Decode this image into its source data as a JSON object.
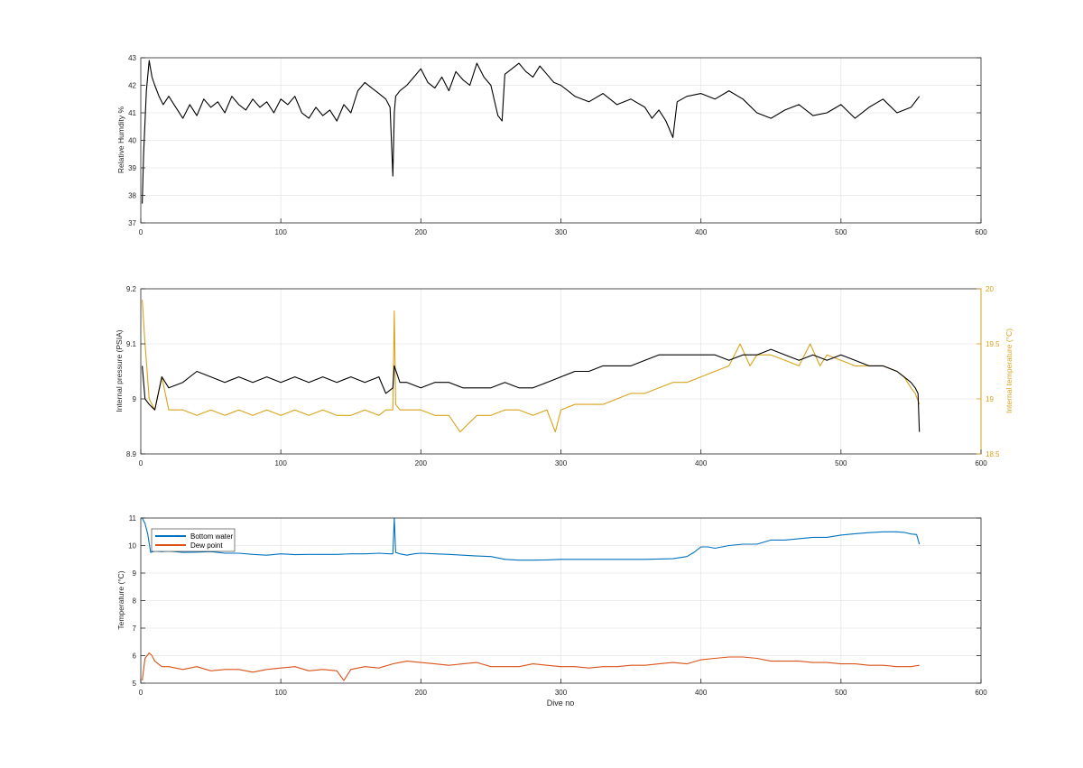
{
  "figure": {
    "xlabel_bottom": "Dive no",
    "colors": {
      "black": "#000000",
      "orange": "#D9A21B",
      "blue": "#0072BD",
      "red": "#D95319",
      "grid": "#e6e6e6",
      "axis": "#262626"
    }
  },
  "chart_data": [
    {
      "type": "line",
      "title": "",
      "xlabel": "",
      "ylabel": "Relative Humdity %",
      "xlim": [
        0,
        600
      ],
      "ylim": [
        37,
        43
      ],
      "xticks": [
        0,
        100,
        200,
        300,
        400,
        500,
        600
      ],
      "yticks": [
        37,
        38,
        39,
        40,
        41,
        42,
        43
      ],
      "xtick_labels": [
        "0",
        "100",
        "200",
        "300",
        "400",
        "500",
        "600"
      ],
      "ytick_labels": [
        "37",
        "38",
        "39",
        "40",
        "41",
        "42",
        "43"
      ],
      "grid": true,
      "series": [
        {
          "color": "#000000",
          "x": [
            1,
            2,
            4,
            6,
            8,
            10,
            13,
            16,
            20,
            25,
            30,
            35,
            40,
            45,
            50,
            55,
            60,
            65,
            70,
            75,
            80,
            85,
            90,
            95,
            100,
            105,
            110,
            115,
            120,
            125,
            130,
            135,
            140,
            145,
            150,
            155,
            160,
            165,
            170,
            175,
            178,
            180,
            181,
            182,
            185,
            190,
            195,
            200,
            205,
            210,
            215,
            220,
            225,
            230,
            235,
            240,
            245,
            250,
            255,
            258,
            260,
            265,
            270,
            275,
            280,
            285,
            290,
            295,
            300,
            305,
            310,
            320,
            330,
            340,
            350,
            360,
            365,
            370,
            375,
            380,
            383,
            390,
            400,
            410,
            420,
            430,
            440,
            450,
            460,
            470,
            480,
            490,
            500,
            510,
            520,
            530,
            540,
            550,
            556
          ],
          "y": [
            37.7,
            39.5,
            41.8,
            42.9,
            42.3,
            42.0,
            41.6,
            41.3,
            41.6,
            41.2,
            40.8,
            41.3,
            40.9,
            41.5,
            41.2,
            41.4,
            41.0,
            41.6,
            41.3,
            41.1,
            41.5,
            41.2,
            41.4,
            41.0,
            41.5,
            41.3,
            41.6,
            41.0,
            40.8,
            41.2,
            40.9,
            41.1,
            40.7,
            41.3,
            41.0,
            41.8,
            42.1,
            41.9,
            41.7,
            41.5,
            41.2,
            38.7,
            41.0,
            41.6,
            41.8,
            42.0,
            42.3,
            42.6,
            42.1,
            41.9,
            42.3,
            41.8,
            42.5,
            42.2,
            42.0,
            42.8,
            42.3,
            42.0,
            40.9,
            40.7,
            42.4,
            42.6,
            42.8,
            42.5,
            42.3,
            42.7,
            42.4,
            42.1,
            42.0,
            41.8,
            41.6,
            41.4,
            41.7,
            41.3,
            41.5,
            41.2,
            40.8,
            41.1,
            40.7,
            40.1,
            41.4,
            41.6,
            41.7,
            41.5,
            41.8,
            41.5,
            41.0,
            40.8,
            41.1,
            41.3,
            40.9,
            41.0,
            41.3,
            40.8,
            41.2,
            41.5,
            41.0,
            41.2,
            41.6
          ]
        }
      ]
    },
    {
      "type": "line",
      "title": "",
      "xlabel": "",
      "ylabel": "Internal pressure (PSIA)",
      "ylabel_right": "Internal temperature (°C)",
      "xlim": [
        0,
        600
      ],
      "ylim": [
        8.9,
        9.2
      ],
      "ylim_right": [
        18.5,
        20
      ],
      "xticks": [
        0,
        100,
        200,
        300,
        400,
        500,
        600
      ],
      "yticks": [
        8.9,
        9.0,
        9.1,
        9.2
      ],
      "yticks_right": [
        18.5,
        19,
        19.5,
        20
      ],
      "xtick_labels": [
        "0",
        "100",
        "200",
        "300",
        "400",
        "500",
        "600"
      ],
      "ytick_labels": [
        "8.9",
        "9",
        "9.1",
        "9.2"
      ],
      "ytick_labels_right": [
        "18.5",
        "19",
        "19.5",
        "20"
      ],
      "grid": true,
      "series": [
        {
          "axis": "left",
          "color": "#000000",
          "x": [
            1,
            3,
            6,
            10,
            15,
            20,
            30,
            40,
            50,
            60,
            70,
            80,
            90,
            100,
            110,
            120,
            130,
            140,
            150,
            160,
            170,
            175,
            180,
            181,
            185,
            190,
            200,
            210,
            220,
            230,
            240,
            250,
            260,
            270,
            280,
            290,
            300,
            310,
            320,
            330,
            340,
            350,
            360,
            370,
            380,
            390,
            400,
            410,
            420,
            430,
            440,
            450,
            460,
            470,
            480,
            490,
            500,
            510,
            520,
            530,
            540,
            545,
            550,
            553,
            555,
            556
          ],
          "y": [
            9.06,
            9.0,
            8.99,
            8.98,
            9.04,
            9.02,
            9.03,
            9.05,
            9.04,
            9.03,
            9.04,
            9.03,
            9.04,
            9.03,
            9.04,
            9.03,
            9.04,
            9.03,
            9.04,
            9.03,
            9.04,
            9.01,
            9.02,
            9.06,
            9.03,
            9.03,
            9.02,
            9.03,
            9.03,
            9.02,
            9.02,
            9.02,
            9.03,
            9.02,
            9.02,
            9.03,
            9.04,
            9.05,
            9.05,
            9.06,
            9.06,
            9.06,
            9.07,
            9.08,
            9.08,
            9.08,
            9.08,
            9.08,
            9.07,
            9.08,
            9.08,
            9.09,
            9.08,
            9.07,
            9.08,
            9.07,
            9.08,
            9.07,
            9.06,
            9.06,
            9.05,
            9.04,
            9.03,
            9.02,
            9.01,
            8.94
          ]
        },
        {
          "axis": "right",
          "color": "#D9A21B",
          "x": [
            1,
            3,
            6,
            10,
            15,
            20,
            30,
            40,
            50,
            60,
            70,
            80,
            90,
            100,
            110,
            120,
            130,
            140,
            150,
            160,
            170,
            175,
            180,
            181,
            182,
            185,
            190,
            200,
            210,
            220,
            228,
            240,
            250,
            260,
            270,
            280,
            290,
            296,
            300,
            310,
            320,
            330,
            340,
            350,
            360,
            370,
            380,
            390,
            400,
            410,
            420,
            428,
            435,
            440,
            450,
            460,
            470,
            478,
            485,
            490,
            500,
            510,
            520,
            530,
            540,
            545,
            550,
            553,
            556
          ],
          "y": [
            19.9,
            19.5,
            19.0,
            18.9,
            19.2,
            18.9,
            18.9,
            18.85,
            18.9,
            18.85,
            18.9,
            18.85,
            18.9,
            18.85,
            18.9,
            18.85,
            18.9,
            18.85,
            18.85,
            18.9,
            18.85,
            18.9,
            18.9,
            19.8,
            18.95,
            18.9,
            18.9,
            18.9,
            18.85,
            18.85,
            18.7,
            18.85,
            18.85,
            18.9,
            18.9,
            18.85,
            18.9,
            18.7,
            18.9,
            18.95,
            18.95,
            18.95,
            19.0,
            19.05,
            19.05,
            19.1,
            19.15,
            19.15,
            19.2,
            19.25,
            19.3,
            19.5,
            19.3,
            19.4,
            19.4,
            19.35,
            19.3,
            19.5,
            19.3,
            19.4,
            19.35,
            19.3,
            19.3,
            19.3,
            19.25,
            19.2,
            19.1,
            19.05,
            18.95
          ]
        }
      ]
    },
    {
      "type": "line",
      "title": "",
      "xlabel": "Dive no",
      "ylabel": "Temperature (°C)",
      "xlim": [
        0,
        600
      ],
      "ylim": [
        5,
        11
      ],
      "xticks": [
        0,
        100,
        200,
        300,
        400,
        500,
        600
      ],
      "yticks": [
        5,
        6,
        7,
        8,
        9,
        10,
        11
      ],
      "xtick_labels": [
        "0",
        "100",
        "200",
        "300",
        "400",
        "500",
        "600"
      ],
      "ytick_labels": [
        "5",
        "6",
        "7",
        "8",
        "9",
        "10",
        "11"
      ],
      "grid": true,
      "legend": {
        "placement": "top-left",
        "entries": [
          {
            "name": "Bottom water",
            "color": "#0072BD"
          },
          {
            "name": "Dew point",
            "color": "#D95319"
          }
        ]
      },
      "series": [
        {
          "name": "Bottom water",
          "color": "#0072BD",
          "x": [
            1,
            3,
            5,
            7,
            10,
            15,
            20,
            30,
            40,
            50,
            60,
            70,
            80,
            90,
            100,
            110,
            120,
            130,
            140,
            150,
            160,
            170,
            178,
            180,
            181,
            182,
            185,
            190,
            195,
            200,
            210,
            220,
            230,
            240,
            250,
            255,
            260,
            270,
            280,
            290,
            300,
            320,
            340,
            360,
            380,
            390,
            395,
            400,
            405,
            410,
            420,
            430,
            440,
            450,
            460,
            470,
            480,
            490,
            500,
            510,
            520,
            530,
            540,
            545,
            550,
            554,
            556
          ],
          "y": [
            11.0,
            10.8,
            10.4,
            9.75,
            9.8,
            9.78,
            9.8,
            9.75,
            9.76,
            9.78,
            9.72,
            9.72,
            9.68,
            9.65,
            9.7,
            9.67,
            9.68,
            9.68,
            9.68,
            9.7,
            9.7,
            9.72,
            9.7,
            9.7,
            11.0,
            9.75,
            9.7,
            9.65,
            9.7,
            9.72,
            9.7,
            9.68,
            9.65,
            9.62,
            9.6,
            9.55,
            9.5,
            9.47,
            9.47,
            9.48,
            9.5,
            9.5,
            9.5,
            9.5,
            9.52,
            9.6,
            9.75,
            9.95,
            9.95,
            9.9,
            10.0,
            10.05,
            10.05,
            10.2,
            10.2,
            10.25,
            10.3,
            10.3,
            10.38,
            10.43,
            10.47,
            10.5,
            10.5,
            10.48,
            10.42,
            10.4,
            10.05
          ]
        },
        {
          "name": "Dew point",
          "color": "#D95319",
          "x": [
            1,
            3,
            6,
            8,
            10,
            15,
            20,
            30,
            40,
            50,
            60,
            70,
            80,
            90,
            100,
            110,
            120,
            130,
            140,
            145,
            150,
            160,
            170,
            180,
            190,
            200,
            210,
            220,
            230,
            240,
            250,
            260,
            270,
            280,
            290,
            300,
            310,
            320,
            330,
            340,
            350,
            360,
            370,
            380,
            390,
            400,
            410,
            420,
            430,
            440,
            450,
            460,
            470,
            480,
            490,
            500,
            510,
            520,
            530,
            540,
            550,
            556
          ],
          "y": [
            5.1,
            5.9,
            6.1,
            6.0,
            5.8,
            5.6,
            5.6,
            5.5,
            5.6,
            5.45,
            5.5,
            5.5,
            5.4,
            5.5,
            5.55,
            5.6,
            5.45,
            5.5,
            5.45,
            5.1,
            5.5,
            5.6,
            5.55,
            5.7,
            5.8,
            5.75,
            5.7,
            5.65,
            5.7,
            5.75,
            5.6,
            5.6,
            5.6,
            5.7,
            5.65,
            5.6,
            5.6,
            5.55,
            5.6,
            5.6,
            5.65,
            5.65,
            5.7,
            5.75,
            5.7,
            5.85,
            5.9,
            5.95,
            5.95,
            5.9,
            5.8,
            5.8,
            5.8,
            5.75,
            5.75,
            5.7,
            5.7,
            5.65,
            5.65,
            5.6,
            5.6,
            5.65
          ]
        }
      ]
    }
  ]
}
